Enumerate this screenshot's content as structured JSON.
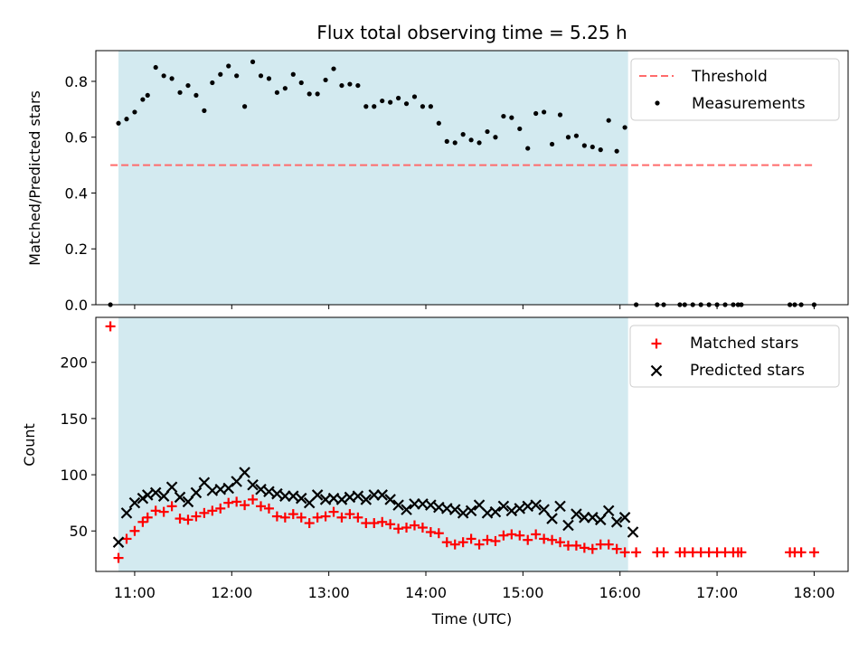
{
  "chart_data": [
    {
      "type": "scatter",
      "title": "Flux total observing time = 5.25 h",
      "xlabel": "",
      "ylabel": "Matched/Predicted stars",
      "ylim": [
        0,
        0.91
      ],
      "x_ticks": [
        "11:00",
        "12:00",
        "13:00",
        "14:00",
        "15:00",
        "16:00",
        "17:00",
        "18:00"
      ],
      "x_tick_labels_shown": false,
      "y_ticks": [
        0.0,
        0.2,
        0.4,
        0.6,
        0.8
      ],
      "y_tick_labels": [
        "0.0",
        "0.2",
        "0.4",
        "0.6",
        "0.8"
      ],
      "highlight_span": {
        "start": "10:50",
        "end": "16:05",
        "color": "#d3eaf0"
      },
      "threshold": {
        "name": "Threshold",
        "value": 0.5,
        "start": "10:45",
        "end": "18:00",
        "color": "#ff6b6b",
        "style": "dashed"
      },
      "legend": {
        "placement": "top-right",
        "entries": [
          "Threshold",
          "Measurements"
        ]
      },
      "series": [
        {
          "name": "Measurements",
          "marker": "dot",
          "color": "#000000",
          "points": [
            [
              "10:45",
              0.0
            ],
            [
              "10:50",
              0.65
            ],
            [
              "10:55",
              0.665
            ],
            [
              "11:00",
              0.69
            ],
            [
              "11:05",
              0.735
            ],
            [
              "11:08",
              0.75
            ],
            [
              "11:13",
              0.85
            ],
            [
              "11:18",
              0.82
            ],
            [
              "11:23",
              0.81
            ],
            [
              "11:28",
              0.76
            ],
            [
              "11:33",
              0.785
            ],
            [
              "11:38",
              0.75
            ],
            [
              "11:43",
              0.695
            ],
            [
              "11:48",
              0.795
            ],
            [
              "11:53",
              0.825
            ],
            [
              "11:58",
              0.855
            ],
            [
              "12:03",
              0.82
            ],
            [
              "12:08",
              0.71
            ],
            [
              "12:13",
              0.87
            ],
            [
              "12:18",
              0.82
            ],
            [
              "12:23",
              0.81
            ],
            [
              "12:28",
              0.76
            ],
            [
              "12:33",
              0.775
            ],
            [
              "12:38",
              0.825
            ],
            [
              "12:43",
              0.795
            ],
            [
              "12:48",
              0.755
            ],
            [
              "12:53",
              0.755
            ],
            [
              "12:58",
              0.805
            ],
            [
              "13:03",
              0.845
            ],
            [
              "13:08",
              0.785
            ],
            [
              "13:13",
              0.79
            ],
            [
              "13:18",
              0.785
            ],
            [
              "13:23",
              0.71
            ],
            [
              "13:28",
              0.71
            ],
            [
              "13:33",
              0.73
            ],
            [
              "13:38",
              0.725
            ],
            [
              "13:43",
              0.74
            ],
            [
              "13:48",
              0.72
            ],
            [
              "13:53",
              0.745
            ],
            [
              "13:58",
              0.71
            ],
            [
              "14:03",
              0.71
            ],
            [
              "14:08",
              0.65
            ],
            [
              "14:13",
              0.585
            ],
            [
              "14:18",
              0.58
            ],
            [
              "14:23",
              0.61
            ],
            [
              "14:28",
              0.59
            ],
            [
              "14:33",
              0.58
            ],
            [
              "14:38",
              0.62
            ],
            [
              "14:43",
              0.6
            ],
            [
              "14:48",
              0.675
            ],
            [
              "14:53",
              0.67
            ],
            [
              "14:58",
              0.63
            ],
            [
              "15:03",
              0.56
            ],
            [
              "15:08",
              0.685
            ],
            [
              "15:13",
              0.69
            ],
            [
              "15:18",
              0.575
            ],
            [
              "15:23",
              0.68
            ],
            [
              "15:28",
              0.6
            ],
            [
              "15:33",
              0.605
            ],
            [
              "15:38",
              0.57
            ],
            [
              "15:43",
              0.565
            ],
            [
              "15:48",
              0.555
            ],
            [
              "15:53",
              0.66
            ],
            [
              "15:58",
              0.55
            ],
            [
              "16:03",
              0.635
            ],
            [
              "16:10",
              0.0
            ],
            [
              "16:23",
              0.0
            ],
            [
              "16:27",
              0.0
            ],
            [
              "16:37",
              0.0
            ],
            [
              "16:40",
              0.0
            ],
            [
              "16:45",
              0.0
            ],
            [
              "16:50",
              0.0
            ],
            [
              "16:55",
              0.0
            ],
            [
              "17:00",
              0.0
            ],
            [
              "17:05",
              0.0
            ],
            [
              "17:10",
              0.0
            ],
            [
              "17:13",
              0.0
            ],
            [
              "17:15",
              0.0
            ],
            [
              "17:45",
              0.0
            ],
            [
              "17:48",
              0.0
            ],
            [
              "17:52",
              0.0
            ],
            [
              "18:00",
              0.0
            ]
          ]
        }
      ]
    },
    {
      "type": "scatter",
      "title": "",
      "xlabel": "Time (UTC)",
      "ylabel": "Count",
      "ylim": [
        14,
        240
      ],
      "x_ticks": [
        "11:00",
        "12:00",
        "13:00",
        "14:00",
        "15:00",
        "16:00",
        "17:00",
        "18:00"
      ],
      "x_tick_labels": [
        "11:00",
        "12:00",
        "13:00",
        "14:00",
        "15:00",
        "16:00",
        "17:00",
        "18:00"
      ],
      "y_ticks": [
        50,
        100,
        150,
        200
      ],
      "y_tick_labels": [
        "50",
        "100",
        "150",
        "200"
      ],
      "highlight_span": {
        "start": "10:50",
        "end": "16:05",
        "color": "#d3eaf0"
      },
      "legend": {
        "placement": "top-right",
        "entries": [
          "Matched stars",
          "Predicted stars"
        ]
      },
      "series": [
        {
          "name": "Matched stars",
          "marker": "plus",
          "color": "#ff0000",
          "points": [
            [
              "10:45",
              232
            ],
            [
              "10:50",
              26
            ],
            [
              "10:55",
              43
            ],
            [
              "11:00",
              50
            ],
            [
              "11:05",
              58
            ],
            [
              "11:08",
              62
            ],
            [
              "11:13",
              68
            ],
            [
              "11:18",
              67
            ],
            [
              "11:23",
              72
            ],
            [
              "11:28",
              61
            ],
            [
              "11:33",
              60
            ],
            [
              "11:38",
              63
            ],
            [
              "11:43",
              66
            ],
            [
              "11:48",
              68
            ],
            [
              "11:53",
              70
            ],
            [
              "11:58",
              75
            ],
            [
              "12:03",
              76
            ],
            [
              "12:08",
              73
            ],
            [
              "12:13",
              78
            ],
            [
              "12:18",
              72
            ],
            [
              "12:23",
              70
            ],
            [
              "12:28",
              63
            ],
            [
              "12:33",
              62
            ],
            [
              "12:38",
              65
            ],
            [
              "12:43",
              62
            ],
            [
              "12:48",
              57
            ],
            [
              "12:53",
              62
            ],
            [
              "12:58",
              63
            ],
            [
              "13:03",
              67
            ],
            [
              "13:08",
              62
            ],
            [
              "13:13",
              65
            ],
            [
              "13:18",
              62
            ],
            [
              "13:23",
              57
            ],
            [
              "13:28",
              57
            ],
            [
              "13:33",
              58
            ],
            [
              "13:38",
              56
            ],
            [
              "13:43",
              52
            ],
            [
              "13:48",
              53
            ],
            [
              "13:53",
              55
            ],
            [
              "13:58",
              53
            ],
            [
              "14:03",
              49
            ],
            [
              "14:08",
              48
            ],
            [
              "14:13",
              40
            ],
            [
              "14:18",
              38
            ],
            [
              "14:23",
              40
            ],
            [
              "14:28",
              43
            ],
            [
              "14:33",
              38
            ],
            [
              "14:38",
              42
            ],
            [
              "14:43",
              41
            ],
            [
              "14:48",
              46
            ],
            [
              "14:53",
              47
            ],
            [
              "14:58",
              46
            ],
            [
              "15:03",
              42
            ],
            [
              "15:08",
              47
            ],
            [
              "15:13",
              43
            ],
            [
              "15:18",
              42
            ],
            [
              "15:23",
              40
            ],
            [
              "15:28",
              37
            ],
            [
              "15:33",
              37
            ],
            [
              "15:38",
              35
            ],
            [
              "15:43",
              34
            ],
            [
              "15:48",
              38
            ],
            [
              "15:53",
              38
            ],
            [
              "15:58",
              34
            ],
            [
              "16:03",
              31
            ],
            [
              "16:10",
              31
            ],
            [
              "16:23",
              31
            ],
            [
              "16:27",
              31
            ],
            [
              "16:37",
              31
            ],
            [
              "16:40",
              31
            ],
            [
              "16:45",
              31
            ],
            [
              "16:50",
              31
            ],
            [
              "16:55",
              31
            ],
            [
              "17:00",
              31
            ],
            [
              "17:05",
              31
            ],
            [
              "17:10",
              31
            ],
            [
              "17:13",
              31
            ],
            [
              "17:15",
              31
            ],
            [
              "17:45",
              31
            ],
            [
              "17:48",
              31
            ],
            [
              "17:52",
              31
            ],
            [
              "18:00",
              31
            ]
          ]
        },
        {
          "name": "Predicted stars",
          "marker": "x",
          "color": "#000000",
          "points": [
            [
              "10:50",
              40
            ],
            [
              "10:55",
              66
            ],
            [
              "11:00",
              75
            ],
            [
              "11:05",
              79
            ],
            [
              "11:08",
              82
            ],
            [
              "11:13",
              84
            ],
            [
              "11:18",
              81
            ],
            [
              "11:23",
              89
            ],
            [
              "11:28",
              80
            ],
            [
              "11:33",
              76
            ],
            [
              "11:38",
              84
            ],
            [
              "11:43",
              93
            ],
            [
              "11:48",
              86
            ],
            [
              "11:53",
              87
            ],
            [
              "11:58",
              88
            ],
            [
              "12:03",
              94
            ],
            [
              "12:08",
              102
            ],
            [
              "12:13",
              91
            ],
            [
              "12:18",
              87
            ],
            [
              "12:23",
              85
            ],
            [
              "12:28",
              83
            ],
            [
              "12:33",
              81
            ],
            [
              "12:38",
              81
            ],
            [
              "12:43",
              79
            ],
            [
              "12:48",
              75
            ],
            [
              "12:53",
              82
            ],
            [
              "12:58",
              78
            ],
            [
              "13:03",
              79
            ],
            [
              "13:08",
              78
            ],
            [
              "13:13",
              80
            ],
            [
              "13:18",
              81
            ],
            [
              "13:23",
              78
            ],
            [
              "13:28",
              82
            ],
            [
              "13:33",
              82
            ],
            [
              "13:38",
              78
            ],
            [
              "13:43",
              73
            ],
            [
              "13:48",
              69
            ],
            [
              "13:53",
              74
            ],
            [
              "13:58",
              74
            ],
            [
              "14:03",
              73
            ],
            [
              "14:08",
              71
            ],
            [
              "14:13",
              70
            ],
            [
              "14:18",
              69
            ],
            [
              "14:23",
              66
            ],
            [
              "14:28",
              68
            ],
            [
              "14:33",
              73
            ],
            [
              "14:38",
              66
            ],
            [
              "14:43",
              67
            ],
            [
              "14:48",
              72
            ],
            [
              "14:53",
              68
            ],
            [
              "14:58",
              70
            ],
            [
              "15:03",
              72
            ],
            [
              "15:08",
              73
            ],
            [
              "15:13",
              69
            ],
            [
              "15:18",
              61
            ],
            [
              "15:23",
              72
            ],
            [
              "15:28",
              55
            ],
            [
              "15:33",
              65
            ],
            [
              "15:38",
              62
            ],
            [
              "15:43",
              62
            ],
            [
              "15:48",
              60
            ],
            [
              "15:53",
              68
            ],
            [
              "15:58",
              58
            ],
            [
              "16:03",
              62
            ],
            [
              "16:08",
              49
            ]
          ]
        }
      ]
    }
  ]
}
